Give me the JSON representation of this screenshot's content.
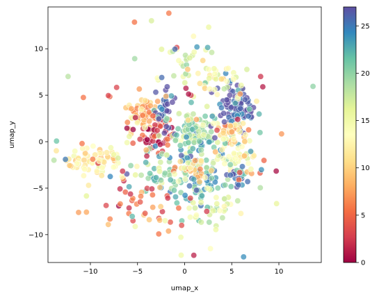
{
  "chart_data": {
    "type": "scatter",
    "title": "",
    "xlabel": "umap_x",
    "ylabel": "umap_y",
    "xlim": [
      -14.5,
      14.5
    ],
    "ylim": [
      -13,
      14.5
    ],
    "xticks": [
      -10,
      -5,
      0,
      5,
      10
    ],
    "yticks": [
      -10,
      -5,
      0,
      5,
      10
    ],
    "grid": false,
    "legend": "none",
    "marker_alpha": 0.75,
    "marker_edge_color": "#ffffff",
    "colorbar": {
      "colormap": "Spectral",
      "range": [
        0,
        27
      ],
      "ticks": [
        0,
        5,
        10,
        15,
        20,
        25
      ],
      "stops": [
        "#9e0142",
        "#d53e4f",
        "#f46d43",
        "#fdae61",
        "#fee08b",
        "#ffffbf",
        "#e6f598",
        "#abdda4",
        "#66c2a5",
        "#3288bd",
        "#5e4fa2"
      ]
    },
    "clusters": [
      {
        "x": -9.5,
        "y": -2.0,
        "sx": 1.6,
        "sy": 0.9,
        "n": 70,
        "value": 12
      },
      {
        "x": -4.5,
        "y": 3.0,
        "sx": 1.0,
        "sy": 1.0,
        "n": 55,
        "value": 9
      },
      {
        "x": -3.0,
        "y": 0.5,
        "sx": 1.0,
        "sy": 0.8,
        "n": 50,
        "value": 2
      },
      {
        "x": -2.0,
        "y": 3.5,
        "sx": 0.6,
        "sy": 1.2,
        "n": 35,
        "value": 26
      },
      {
        "x": -2.5,
        "y": -3.0,
        "sx": 1.0,
        "sy": 1.3,
        "n": 35,
        "value": 20
      },
      {
        "x": 1.0,
        "y": 1.0,
        "sx": 1.0,
        "sy": 1.0,
        "n": 85,
        "value": 19
      },
      {
        "x": 1.5,
        "y": -3.0,
        "sx": 1.4,
        "sy": 2.0,
        "n": 95,
        "value": 22
      },
      {
        "x": 0.5,
        "y": -3.0,
        "sx": 0.8,
        "sy": 0.6,
        "n": 25,
        "value": 10
      },
      {
        "x": 5.5,
        "y": 3.5,
        "sx": 1.1,
        "sy": 1.6,
        "n": 90,
        "value": 26
      },
      {
        "x": 5.0,
        "y": 1.0,
        "sx": 1.2,
        "sy": 0.8,
        "n": 35,
        "value": 11
      },
      {
        "x": 5.5,
        "y": -1.5,
        "sx": 1.0,
        "sy": 0.8,
        "n": 30,
        "value": 14
      },
      {
        "x": 5.5,
        "y": -3.5,
        "sx": 0.8,
        "sy": 0.6,
        "n": 20,
        "value": 24
      },
      {
        "x": 0.5,
        "y": 9.0,
        "sx": 1.8,
        "sy": 1.5,
        "n": 30,
        "value": 16
      },
      {
        "x": 3.5,
        "y": 6.5,
        "sx": 1.5,
        "sy": 1.0,
        "n": 30,
        "value": 15
      },
      {
        "x": 3.5,
        "y": -7.5,
        "sx": 1.8,
        "sy": 1.2,
        "n": 30,
        "value": 16
      },
      {
        "x": -4.5,
        "y": -7.0,
        "sx": 1.6,
        "sy": 1.2,
        "n": 25,
        "value": 6
      },
      {
        "x": 0.0,
        "y": 0.0,
        "sx": 6.0,
        "sy": 6.0,
        "n": 140,
        "value": -1
      }
    ],
    "seed": 12345
  }
}
